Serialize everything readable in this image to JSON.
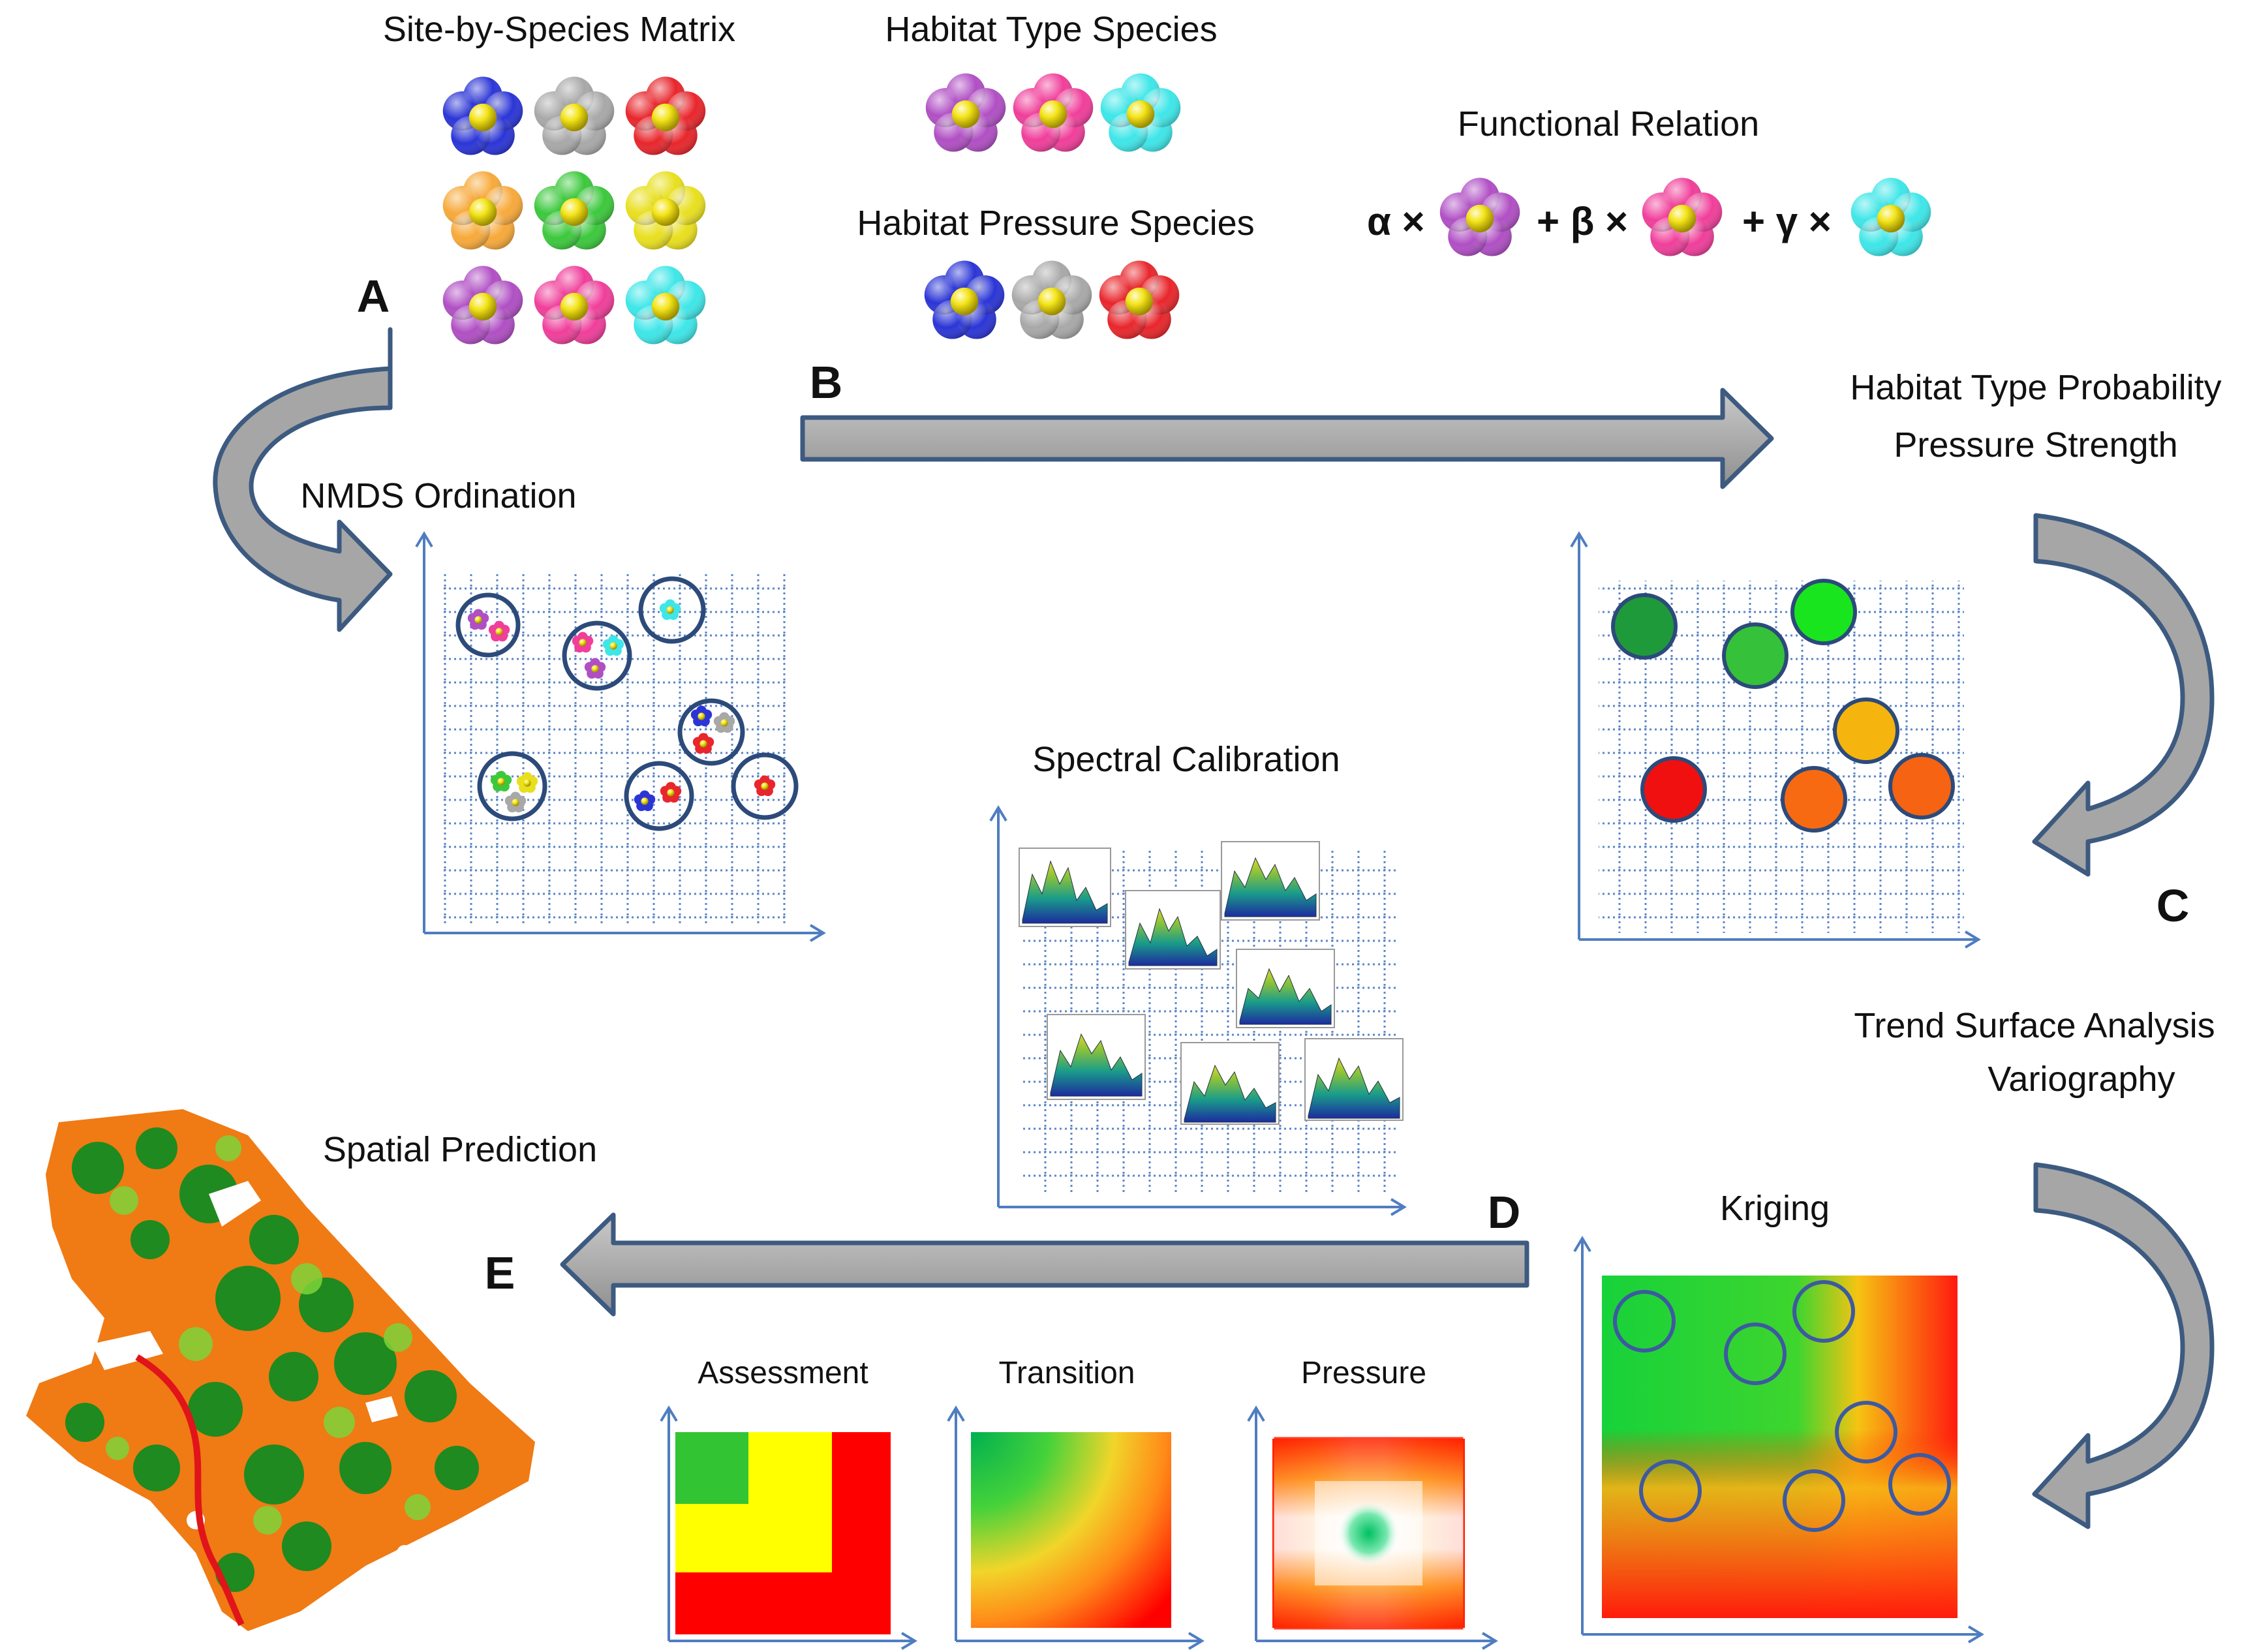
{
  "titles": {
    "site_by_species": "Site-by-Species Matrix",
    "habitat_type_species": "Habitat Type Species",
    "habitat_pressure_species": "Habitat Pressure Species",
    "functional_relation": "Functional Relation",
    "nmds_ordination": "NMDS Ordination",
    "habitat_type_probability": "Habitat Type Probability",
    "pressure_strength": "Pressure Strength",
    "spectral_calibration": "Spectral Calibration",
    "trend_surface_analysis": "Trend Surface Analysis",
    "variography": "Variography",
    "spatial_prediction": "Spatial Prediction",
    "kriging": "Kriging",
    "assessment": "Assessment",
    "transition": "Transition",
    "pressure": "Pressure"
  },
  "steps": {
    "a": "A",
    "b": "B",
    "c": "C",
    "d": "D",
    "e": "E"
  },
  "formula": {
    "alpha": "α ×",
    "beta": "+ β ×",
    "gamma": "+ γ ×"
  },
  "colors": {
    "flower_blue": "#2b35d6",
    "flower_grey": "#a8a8a8",
    "flower_red": "#e8262c",
    "flower_orange": "#f7a93a",
    "flower_green": "#3cc83c",
    "flower_yellow": "#e8df1e",
    "flower_purple": "#b04fc4",
    "flower_pink": "#f03e9a",
    "flower_cyan": "#3ee6e8",
    "arrow_fill": "#a6a6a6",
    "arrow_stroke": "#3d5a80",
    "axis": "#4f7dc0",
    "grid_dot": "#5b86c8"
  }
}
